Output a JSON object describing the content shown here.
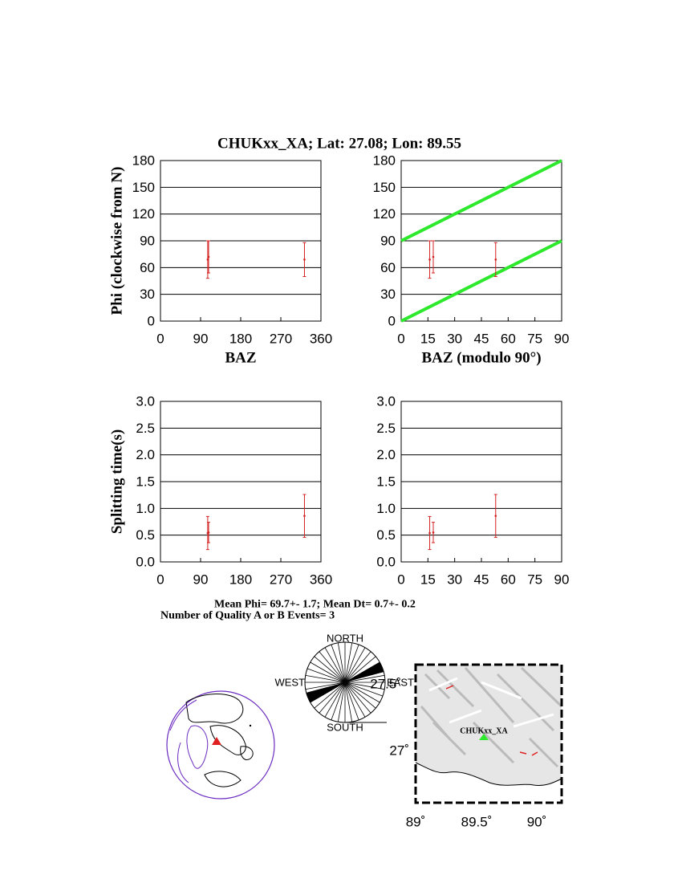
{
  "header": {
    "title": "CHUKxx_XA; Lat:  27.08;  Lon:   89.55"
  },
  "chart_data": [
    {
      "type": "scatter",
      "xlabel": "BAZ",
      "ylabel": "Phi (clockwise from N)",
      "x": [
        106,
        108,
        323
      ],
      "values": [
        69,
        72,
        69
      ],
      "errors": [
        21,
        18,
        19
      ],
      "color": "#d42020",
      "xlim": [
        0,
        360
      ],
      "xticks": [
        0,
        90,
        180,
        270,
        360
      ],
      "ylim": [
        0,
        180
      ],
      "yticks": [
        0,
        30,
        60,
        90,
        120,
        150,
        180
      ],
      "grid": true
    },
    {
      "type": "scatter",
      "xlabel": "BAZ (modulo 90°)",
      "x": [
        16,
        18,
        53
      ],
      "values": [
        69,
        72,
        69
      ],
      "errors": [
        21,
        18,
        19
      ],
      "color": "#d42020",
      "lines": [
        {
          "x": [
            0,
            90
          ],
          "values": [
            0,
            90
          ],
          "color": "#2ee82e"
        },
        {
          "x": [
            0,
            90
          ],
          "values": [
            90,
            180
          ],
          "color": "#2ee82e"
        }
      ],
      "xlim": [
        0,
        90
      ],
      "xticks": [
        0,
        15,
        30,
        45,
        60,
        75,
        90
      ],
      "ylim": [
        0,
        180
      ],
      "yticks": [
        0,
        30,
        60,
        90,
        120,
        150,
        180
      ],
      "grid": true
    },
    {
      "type": "scatter",
      "ylabel": "Splitting time(s)",
      "x": [
        106,
        108,
        323
      ],
      "values": [
        0.54,
        0.55,
        0.86
      ],
      "errors": [
        0.31,
        0.19,
        0.4
      ],
      "color": "#d42020",
      "xlim": [
        0,
        360
      ],
      "xticks": [
        0,
        90,
        180,
        270,
        360
      ],
      "ylim": [
        0,
        3
      ],
      "yticks": [
        {
          "value": 0,
          "label": "0.0"
        },
        0.5,
        {
          "value": 1,
          "label": "1.0"
        },
        1.5,
        {
          "value": 2,
          "label": "2.0"
        },
        2.5,
        {
          "value": 3,
          "label": "3.0"
        }
      ],
      "grid": true
    },
    {
      "type": "scatter",
      "x": [
        16,
        18,
        53
      ],
      "values": [
        0.54,
        0.55,
        0.86
      ],
      "errors": [
        0.31,
        0.19,
        0.4
      ],
      "color": "#d42020",
      "xlim": [
        0,
        90
      ],
      "xticks": [
        0,
        15,
        30,
        45,
        60,
        75,
        90
      ],
      "ylim": [
        0,
        3
      ],
      "yticks": [
        {
          "value": 0,
          "label": "0.0"
        },
        0.5,
        {
          "value": 1,
          "label": "1.0"
        },
        1.5,
        {
          "value": 2,
          "label": "2.0"
        },
        2.5,
        {
          "value": 3,
          "label": "3.0"
        }
      ],
      "grid": true
    }
  ],
  "footer": {
    "mean": "Mean Phi= 69.7+-  1.7; Mean Dt=  0.7+-  0.2",
    "count": "Number of Quality A or B Events=  3"
  },
  "rose": {
    "north": "NORTH",
    "south": "SOUTH",
    "west": "WEST",
    "east": "EAST"
  },
  "map": {
    "station": "CHUKxx_XA",
    "lat_top": "27.5˚",
    "lat_bottom": "27˚",
    "lon_left": "89˚",
    "lon_mid": "89.5˚",
    "lon_right": "90˚"
  }
}
